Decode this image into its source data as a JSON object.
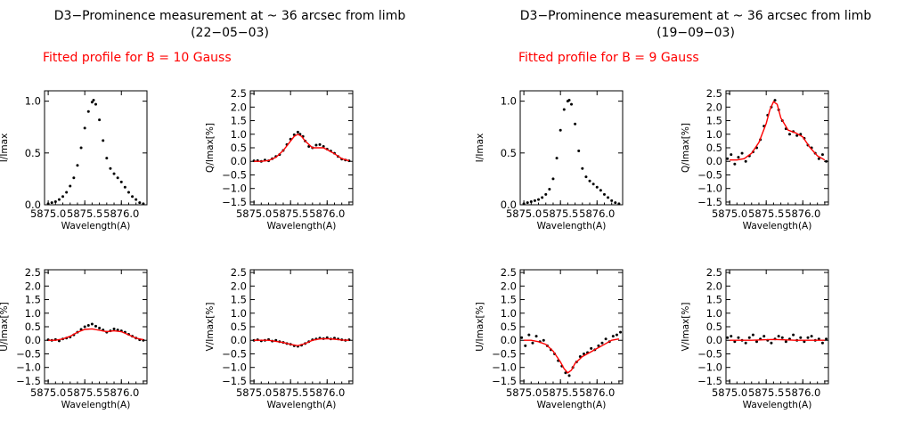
{
  "blocks": [
    {
      "title_line1": "D3−Prominence measurement at ~ 36 arcsec from limb",
      "title_line2": "(22−05−03)",
      "fit_label": "Fitted profile for B = 10 Gauss"
    },
    {
      "title_line1": "D3−Prominence measurement at ~ 36 arcsec from limb",
      "title_line2": "(19−09−03)",
      "fit_label": "Fitted profile for B =  9 Gauss"
    }
  ],
  "colors": {
    "observed": "#000000",
    "fit": "#ff0000",
    "label": "#ff0000"
  },
  "chart_data": [
    {
      "type": "scatter",
      "block": 0,
      "panel": "I",
      "xlabel": "Wavelength(A)",
      "ylabel": "I/Imax",
      "xlim": [
        5874.95,
        5876.35
      ],
      "ylim": [
        0,
        1.1
      ],
      "xticks": [
        5875.0,
        5875.5,
        5876.0
      ],
      "xtick_labels": [
        "5875.0",
        "5875.5",
        "5876.0"
      ],
      "yticks": [
        0,
        0.5,
        1.0
      ],
      "ytick_labels": [
        "0.0",
        "0.5",
        "1.0"
      ],
      "series": [
        {
          "x": [
            5875.0,
            5875.05,
            5875.1,
            5875.15,
            5875.2,
            5875.25,
            5875.3,
            5875.35,
            5875.4,
            5875.45,
            5875.5,
            5875.55,
            5875.6,
            5875.62,
            5875.65,
            5875.7,
            5875.75,
            5875.8,
            5875.85,
            5875.9,
            5875.95,
            5876.0,
            5876.05,
            5876.1,
            5876.15,
            5876.2,
            5876.25,
            5876.3
          ],
          "y": [
            0.01,
            0.02,
            0.03,
            0.05,
            0.08,
            0.12,
            0.18,
            0.26,
            0.38,
            0.55,
            0.74,
            0.9,
            0.99,
            1.01,
            0.97,
            0.82,
            0.62,
            0.45,
            0.35,
            0.3,
            0.26,
            0.22,
            0.17,
            0.12,
            0.08,
            0.05,
            0.02,
            0.01
          ]
        }
      ]
    },
    {
      "type": "scatter",
      "block": 0,
      "panel": "Q",
      "xlabel": "Wavelength(A)",
      "ylabel": "Q/Imax[%]",
      "xlim": [
        5874.95,
        5876.35
      ],
      "ylim": [
        -1.6,
        2.6
      ],
      "xticks": [
        5875.0,
        5875.5,
        5876.0
      ],
      "xtick_labels": [
        "5875.0",
        "5875.5",
        "5876.0"
      ],
      "yticks": [
        -1.5,
        -1.0,
        -0.5,
        0,
        0.5,
        1.0,
        1.5,
        2.0,
        2.5
      ],
      "ytick_labels": [
        "−1.5",
        "−1.0",
        "−0.5",
        "0.0",
        "0.5",
        "1.0",
        "1.5",
        "2.0",
        "2.5"
      ],
      "series": [
        {
          "name": "observed",
          "x": [
            5875.0,
            5875.05,
            5875.1,
            5875.15,
            5875.2,
            5875.25,
            5875.3,
            5875.35,
            5875.4,
            5875.45,
            5875.5,
            5875.55,
            5875.6,
            5875.63,
            5875.67,
            5875.7,
            5875.75,
            5875.8,
            5875.85,
            5875.9,
            5875.95,
            5876.0,
            5876.05,
            5876.1,
            5876.15,
            5876.2,
            5876.25,
            5876.3
          ],
          "y": [
            0.02,
            0.03,
            0.0,
            0.05,
            0.02,
            0.1,
            0.18,
            0.25,
            0.4,
            0.62,
            0.82,
            0.98,
            1.08,
            1.0,
            0.92,
            0.75,
            0.55,
            0.5,
            0.6,
            0.62,
            0.55,
            0.45,
            0.38,
            0.3,
            0.18,
            0.08,
            0.05,
            0.02
          ]
        },
        {
          "name": "fit",
          "x": [
            5875.0,
            5875.1,
            5875.2,
            5875.3,
            5875.4,
            5875.5,
            5875.55,
            5875.6,
            5875.65,
            5875.7,
            5875.8,
            5875.9,
            5875.95,
            5876.0,
            5876.1,
            5876.2,
            5876.3
          ],
          "y": [
            0.0,
            0.0,
            0.03,
            0.15,
            0.4,
            0.75,
            0.92,
            1.0,
            0.92,
            0.75,
            0.5,
            0.5,
            0.5,
            0.43,
            0.28,
            0.1,
            0.02
          ]
        }
      ]
    },
    {
      "type": "scatter",
      "block": 0,
      "panel": "U",
      "xlabel": "Wavelength(A)",
      "ylabel": "U/Imax[%]",
      "xlim": [
        5874.95,
        5876.35
      ],
      "ylim": [
        -1.6,
        2.6
      ],
      "xticks": [
        5875.0,
        5875.5,
        5876.0
      ],
      "xtick_labels": [
        "5875.0",
        "5875.5",
        "5876.0"
      ],
      "yticks": [
        -1.5,
        -1.0,
        -0.5,
        0,
        0.5,
        1.0,
        1.5,
        2.0,
        2.5
      ],
      "ytick_labels": [
        "−1.5",
        "−1.0",
        "−0.5",
        "0.0",
        "0.5",
        "1.0",
        "1.5",
        "2.0",
        "2.5"
      ],
      "series": [
        {
          "name": "observed",
          "x": [
            5875.0,
            5875.05,
            5875.1,
            5875.15,
            5875.2,
            5875.25,
            5875.3,
            5875.35,
            5875.4,
            5875.45,
            5875.5,
            5875.55,
            5875.6,
            5875.65,
            5875.7,
            5875.75,
            5875.8,
            5875.85,
            5875.9,
            5875.95,
            5876.0,
            5876.05,
            5876.1,
            5876.15,
            5876.2,
            5876.25,
            5876.3
          ],
          "y": [
            0.02,
            0.0,
            0.03,
            -0.02,
            0.05,
            0.08,
            0.12,
            0.2,
            0.3,
            0.4,
            0.5,
            0.55,
            0.6,
            0.52,
            0.45,
            0.38,
            0.3,
            0.35,
            0.42,
            0.38,
            0.35,
            0.3,
            0.22,
            0.15,
            0.08,
            0.02,
            0.0
          ]
        },
        {
          "name": "fit",
          "x": [
            5875.0,
            5875.1,
            5875.2,
            5875.3,
            5875.4,
            5875.5,
            5875.6,
            5875.7,
            5875.8,
            5875.9,
            5876.0,
            5876.1,
            5876.2,
            5876.3
          ],
          "y": [
            0.0,
            0.0,
            0.05,
            0.15,
            0.3,
            0.4,
            0.42,
            0.37,
            0.32,
            0.35,
            0.32,
            0.2,
            0.08,
            0.02
          ]
        }
      ]
    },
    {
      "type": "scatter",
      "block": 0,
      "panel": "V",
      "xlabel": "Wavelength(A)",
      "ylabel": "V/Imax[%]",
      "xlim": [
        5874.95,
        5876.35
      ],
      "ylim": [
        -1.6,
        2.6
      ],
      "xticks": [
        5875.0,
        5875.5,
        5876.0
      ],
      "xtick_labels": [
        "5875.0",
        "5875.5",
        "5876.0"
      ],
      "yticks": [
        -1.5,
        -1.0,
        -0.5,
        0,
        0.5,
        1.0,
        1.5,
        2.0,
        2.5
      ],
      "ytick_labels": [
        "−1.5",
        "−1.0",
        "−0.5",
        "0.0",
        "0.5",
        "1.0",
        "1.5",
        "2.0",
        "2.5"
      ],
      "series": [
        {
          "name": "observed",
          "x": [
            5875.0,
            5875.05,
            5875.1,
            5875.15,
            5875.2,
            5875.25,
            5875.3,
            5875.35,
            5875.4,
            5875.45,
            5875.5,
            5875.55,
            5875.6,
            5875.65,
            5875.7,
            5875.75,
            5875.8,
            5875.85,
            5875.9,
            5875.95,
            5876.0,
            5876.05,
            5876.1,
            5876.15,
            5876.2,
            5876.25,
            5876.3
          ],
          "y": [
            0.0,
            0.02,
            -0.02,
            0.0,
            0.03,
            -0.03,
            0.0,
            -0.05,
            -0.08,
            -0.12,
            -0.15,
            -0.2,
            -0.22,
            -0.18,
            -0.12,
            -0.05,
            0.02,
            0.05,
            0.08,
            0.06,
            0.1,
            0.05,
            0.08,
            0.05,
            0.02,
            0.0,
            0.02
          ]
        },
        {
          "name": "fit",
          "x": [
            5875.0,
            5875.2,
            5875.4,
            5875.5,
            5875.6,
            5875.7,
            5875.8,
            5875.9,
            5876.0,
            5876.1,
            5876.2,
            5876.3
          ],
          "y": [
            0.0,
            0.0,
            -0.08,
            -0.15,
            -0.2,
            -0.12,
            0.0,
            0.05,
            0.06,
            0.04,
            0.01,
            0.0
          ]
        }
      ]
    },
    {
      "type": "scatter",
      "block": 1,
      "panel": "I",
      "xlabel": "Wavelength(A)",
      "ylabel": "I/Imax",
      "xlim": [
        5874.95,
        5876.35
      ],
      "ylim": [
        0,
        1.1
      ],
      "xticks": [
        5875.0,
        5875.5,
        5876.0
      ],
      "xtick_labels": [
        "5875.0",
        "5875.5",
        "5876.0"
      ],
      "yticks": [
        0,
        0.5,
        1.0
      ],
      "ytick_labels": [
        "0.0",
        "0.5",
        "1.0"
      ],
      "series": [
        {
          "x": [
            5875.0,
            5875.05,
            5875.1,
            5875.15,
            5875.2,
            5875.25,
            5875.3,
            5875.35,
            5875.4,
            5875.45,
            5875.5,
            5875.55,
            5875.6,
            5875.62,
            5875.65,
            5875.7,
            5875.75,
            5875.8,
            5875.85,
            5875.9,
            5875.95,
            5876.0,
            5876.05,
            5876.1,
            5876.15,
            5876.2,
            5876.25,
            5876.3
          ],
          "y": [
            0.01,
            0.02,
            0.03,
            0.04,
            0.05,
            0.07,
            0.1,
            0.15,
            0.25,
            0.45,
            0.72,
            0.92,
            1.0,
            1.01,
            0.97,
            0.78,
            0.52,
            0.35,
            0.27,
            0.23,
            0.2,
            0.17,
            0.14,
            0.1,
            0.07,
            0.04,
            0.02,
            0.01
          ]
        }
      ]
    },
    {
      "type": "scatter",
      "block": 1,
      "panel": "Q",
      "xlabel": "Wavelength(A)",
      "ylabel": "Q/Imax[%]",
      "xlim": [
        5874.95,
        5876.35
      ],
      "ylim": [
        -1.6,
        2.6
      ],
      "xticks": [
        5875.0,
        5875.5,
        5876.0
      ],
      "xtick_labels": [
        "5875.0",
        "5875.5",
        "5876.0"
      ],
      "yticks": [
        -1.5,
        -1.0,
        -0.5,
        0,
        0.5,
        1.0,
        1.5,
        2.0,
        2.5
      ],
      "ytick_labels": [
        "−1.5",
        "−1.0",
        "−0.5",
        "0.0",
        "0.5",
        "1.0",
        "1.5",
        "2.0",
        "2.5"
      ],
      "series": [
        {
          "name": "observed",
          "x": [
            5874.97,
            5875.02,
            5875.07,
            5875.12,
            5875.17,
            5875.22,
            5875.27,
            5875.32,
            5875.37,
            5875.42,
            5875.47,
            5875.52,
            5875.57,
            5875.62,
            5875.67,
            5875.72,
            5875.77,
            5875.82,
            5875.87,
            5875.92,
            5875.97,
            5876.02,
            5876.07,
            5876.12,
            5876.17,
            5876.22,
            5876.27,
            5876.32
          ],
          "y": [
            0.1,
            0.25,
            -0.1,
            0.15,
            0.3,
            0.0,
            0.2,
            0.35,
            0.5,
            0.8,
            1.3,
            1.7,
            2.0,
            2.25,
            1.9,
            1.5,
            1.2,
            1.0,
            1.1,
            0.95,
            1.0,
            0.85,
            0.6,
            0.5,
            0.3,
            0.1,
            0.25,
            0.0
          ]
        },
        {
          "name": "fit",
          "x": [
            5875.0,
            5875.1,
            5875.2,
            5875.3,
            5875.4,
            5875.5,
            5875.55,
            5875.6,
            5875.65,
            5875.7,
            5875.8,
            5875.9,
            5876.0,
            5876.1,
            5876.2,
            5876.3
          ],
          "y": [
            0.05,
            0.05,
            0.1,
            0.3,
            0.7,
            1.4,
            1.9,
            2.2,
            2.1,
            1.6,
            1.15,
            1.05,
            0.9,
            0.5,
            0.2,
            0.05
          ]
        }
      ]
    },
    {
      "type": "scatter",
      "block": 1,
      "panel": "U",
      "xlabel": "Wavelength(A)",
      "ylabel": "U/Imax[%]",
      "xlim": [
        5874.95,
        5876.35
      ],
      "ylim": [
        -1.6,
        2.6
      ],
      "xticks": [
        5875.0,
        5875.5,
        5876.0
      ],
      "xtick_labels": [
        "5875.0",
        "5875.5",
        "5876.0"
      ],
      "yticks": [
        -1.5,
        -1.0,
        -0.5,
        0,
        0.5,
        1.0,
        1.5,
        2.0,
        2.5
      ],
      "ytick_labels": [
        "−1.5",
        "−1.0",
        "−0.5",
        "0.0",
        "0.5",
        "1.0",
        "1.5",
        "2.0",
        "2.5"
      ],
      "series": [
        {
          "name": "observed",
          "x": [
            5874.97,
            5875.02,
            5875.07,
            5875.12,
            5875.17,
            5875.22,
            5875.27,
            5875.32,
            5875.37,
            5875.42,
            5875.47,
            5875.52,
            5875.57,
            5875.62,
            5875.67,
            5875.72,
            5875.77,
            5875.82,
            5875.87,
            5875.92,
            5875.97,
            5876.02,
            5876.07,
            5876.12,
            5876.17,
            5876.22,
            5876.27,
            5876.32
          ],
          "y": [
            0.1,
            -0.2,
            0.2,
            -0.1,
            0.15,
            -0.05,
            0.0,
            -0.2,
            -0.35,
            -0.5,
            -0.75,
            -0.95,
            -1.2,
            -1.3,
            -1.0,
            -0.8,
            -0.6,
            -0.5,
            -0.45,
            -0.3,
            -0.35,
            -0.2,
            -0.1,
            0.05,
            -0.05,
            0.15,
            0.2,
            0.3
          ]
        },
        {
          "name": "fit",
          "x": [
            5875.0,
            5875.1,
            5875.2,
            5875.3,
            5875.4,
            5875.5,
            5875.55,
            5875.6,
            5875.65,
            5875.7,
            5875.8,
            5875.9,
            5876.0,
            5876.1,
            5876.2,
            5876.3
          ],
          "y": [
            0.0,
            0.0,
            -0.05,
            -0.15,
            -0.4,
            -0.8,
            -1.05,
            -1.2,
            -1.1,
            -0.85,
            -0.6,
            -0.45,
            -0.3,
            -0.15,
            0.0,
            0.05
          ]
        }
      ]
    },
    {
      "type": "scatter",
      "block": 1,
      "panel": "V",
      "xlabel": "Wavelength(A)",
      "ylabel": "V/Imax[%]",
      "xlim": [
        5874.95,
        5876.35
      ],
      "ylim": [
        -1.6,
        2.6
      ],
      "xticks": [
        5875.0,
        5875.5,
        5876.0
      ],
      "xtick_labels": [
        "5875.0",
        "5875.5",
        "5876.0"
      ],
      "yticks": [
        -1.5,
        -1.0,
        -0.5,
        0,
        0.5,
        1.0,
        1.5,
        2.0,
        2.5
      ],
      "ytick_labels": [
        "−1.5",
        "−1.0",
        "−0.5",
        "0.0",
        "0.5",
        "1.0",
        "1.5",
        "2.0",
        "2.5"
      ],
      "series": [
        {
          "name": "observed",
          "x": [
            5874.97,
            5875.02,
            5875.07,
            5875.12,
            5875.17,
            5875.22,
            5875.27,
            5875.32,
            5875.37,
            5875.42,
            5875.47,
            5875.52,
            5875.57,
            5875.62,
            5875.67,
            5875.72,
            5875.77,
            5875.82,
            5875.87,
            5875.92,
            5875.97,
            5876.02,
            5876.07,
            5876.12,
            5876.17,
            5876.22,
            5876.27,
            5876.32
          ],
          "y": [
            0.1,
            0.15,
            -0.05,
            0.1,
            0.0,
            -0.1,
            0.1,
            0.2,
            -0.05,
            0.05,
            0.15,
            0.0,
            -0.1,
            0.05,
            0.15,
            0.1,
            -0.05,
            0.05,
            0.2,
            0.0,
            0.1,
            -0.05,
            0.1,
            0.15,
            0.0,
            0.05,
            -0.1,
            0.05
          ]
        },
        {
          "name": "fit",
          "x": [
            5875.0,
            5875.3,
            5875.5,
            5875.6,
            5875.7,
            5875.9,
            5876.1,
            5876.3
          ],
          "y": [
            0.0,
            0.0,
            0.02,
            0.03,
            0.02,
            0.0,
            0.0,
            0.0
          ]
        }
      ]
    }
  ]
}
